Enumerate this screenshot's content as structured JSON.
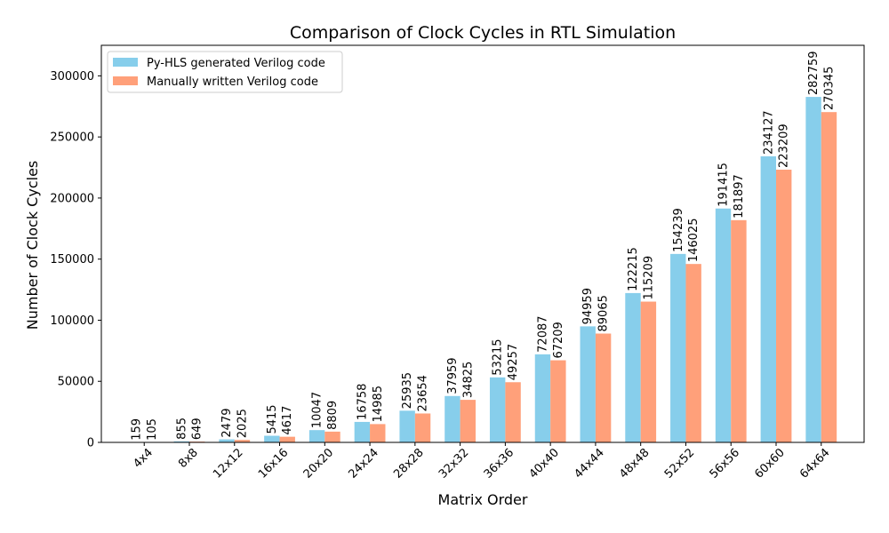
{
  "chart_data": {
    "type": "bar",
    "title": "Comparison of Clock Cycles in RTL Simulation",
    "xlabel": "Matrix Order",
    "ylabel": "Number of Clock Cycles",
    "categories": [
      "4x4",
      "8x8",
      "12x12",
      "16x16",
      "20x20",
      "24x24",
      "28x28",
      "32x32",
      "36x36",
      "40x40",
      "44x44",
      "48x48",
      "52x52",
      "56x56",
      "60x60",
      "64x64"
    ],
    "series": [
      {
        "name": "Py-HLS generated Verilog code",
        "color": "#87CEEB",
        "values": [
          159,
          855,
          2479,
          5415,
          10047,
          16758,
          25935,
          37959,
          53215,
          72087,
          94959,
          122215,
          154239,
          191415,
          234127,
          282759
        ]
      },
      {
        "name": "Manually written Verilog code",
        "color": "#FFA07A",
        "values": [
          105,
          649,
          2025,
          4617,
          8809,
          14985,
          23654,
          34825,
          49257,
          67209,
          89065,
          115209,
          146025,
          181897,
          223209,
          270345
        ]
      }
    ],
    "ylim": [
      0,
      325000
    ],
    "yticks": [
      0,
      50000,
      100000,
      150000,
      200000,
      250000,
      300000
    ],
    "legend_position": "top-left",
    "grid": false
  }
}
